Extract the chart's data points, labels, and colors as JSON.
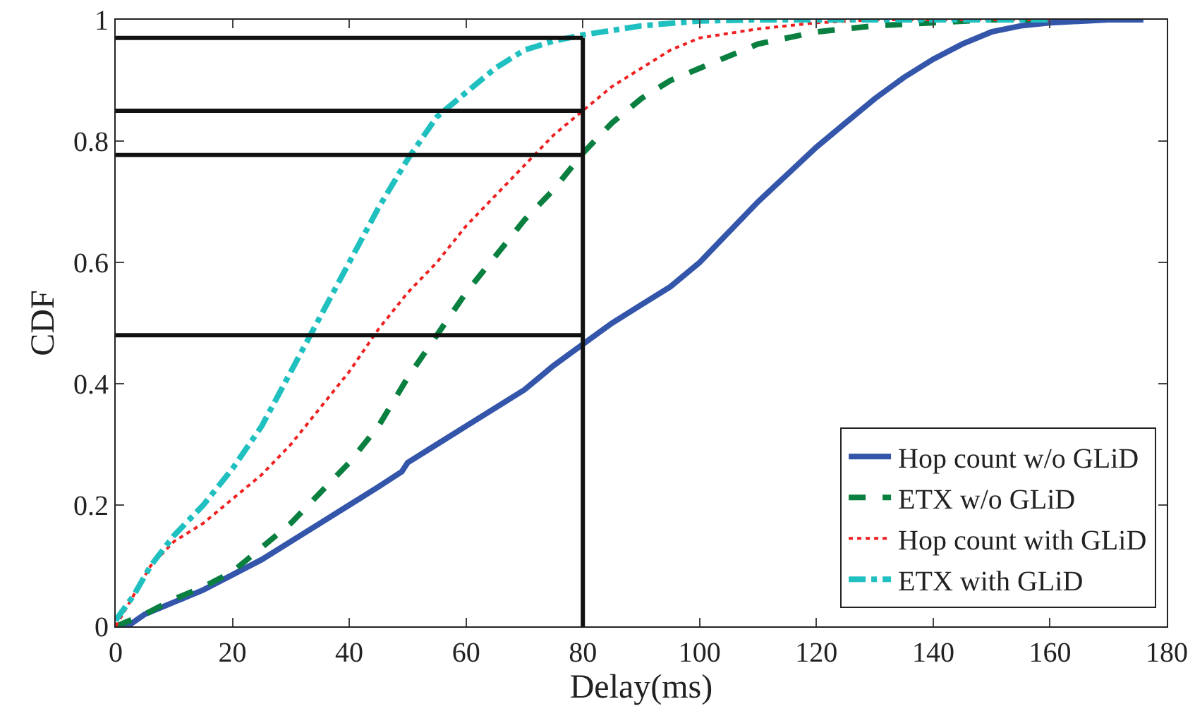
{
  "chart_data": {
    "type": "line",
    "xlabel": "Delay(ms)",
    "ylabel": "CDF",
    "xlim": [
      0,
      180
    ],
    "xticks": [
      0,
      20,
      40,
      60,
      80,
      100,
      120,
      140,
      160,
      180
    ],
    "ylim": [
      0,
      1
    ],
    "yticks": [
      0,
      0.2,
      0.4,
      0.6,
      0.8,
      1
    ],
    "grid": false,
    "legend": "bottom right",
    "marker": "none",
    "series": [
      {
        "name": "Hop count w/o GLiD",
        "color": "#3355aa",
        "line_style": "solid",
        "x": [
          0,
          2,
          5,
          10,
          15,
          20,
          25,
          30,
          35,
          40,
          45,
          49,
          50,
          55,
          60,
          65,
          70,
          75,
          80,
          85,
          90,
          95,
          100,
          105,
          110,
          115,
          120,
          125,
          130,
          135,
          140,
          145,
          150,
          155,
          160,
          170,
          176
        ],
        "values": [
          0,
          0,
          0.02,
          0.04,
          0.06,
          0.085,
          0.11,
          0.14,
          0.17,
          0.2,
          0.23,
          0.255,
          0.27,
          0.3,
          0.33,
          0.36,
          0.39,
          0.43,
          0.465,
          0.5,
          0.53,
          0.56,
          0.6,
          0.65,
          0.7,
          0.745,
          0.79,
          0.83,
          0.87,
          0.905,
          0.935,
          0.96,
          0.98,
          0.99,
          0.995,
          1,
          1
        ]
      },
      {
        "name": "ETX w/o GLiD",
        "color": "#0a8040",
        "line_style": "dashed",
        "x": [
          0,
          5,
          10,
          15,
          20,
          25,
          30,
          35,
          40,
          45,
          50,
          55,
          60,
          65,
          70,
          75,
          80,
          85,
          90,
          95,
          100,
          105,
          110,
          120,
          130,
          140,
          150,
          160
        ],
        "values": [
          0,
          0.02,
          0.045,
          0.065,
          0.09,
          0.13,
          0.17,
          0.22,
          0.27,
          0.33,
          0.41,
          0.48,
          0.55,
          0.61,
          0.67,
          0.72,
          0.78,
          0.83,
          0.87,
          0.9,
          0.92,
          0.94,
          0.96,
          0.98,
          0.99,
          0.995,
          1,
          1
        ]
      },
      {
        "name": "Hop count with GLiD",
        "color": "#ee2020",
        "line_style": "dotted",
        "x": [
          0,
          3,
          6,
          10,
          15,
          20,
          25,
          30,
          35,
          40,
          45,
          50,
          55,
          60,
          65,
          70,
          75,
          80,
          85,
          90,
          95,
          100,
          110,
          120,
          130,
          160
        ],
        "values": [
          0,
          0.05,
          0.1,
          0.14,
          0.17,
          0.21,
          0.25,
          0.3,
          0.36,
          0.42,
          0.49,
          0.55,
          0.6,
          0.66,
          0.71,
          0.76,
          0.81,
          0.85,
          0.89,
          0.92,
          0.95,
          0.97,
          0.985,
          0.995,
          1,
          1
        ]
      },
      {
        "name": "ETX with GLiD",
        "color": "#20c0c0",
        "line_style": "dashdot",
        "x": [
          0,
          3,
          6,
          10,
          15,
          20,
          25,
          30,
          35,
          40,
          45,
          50,
          55,
          60,
          65,
          70,
          75,
          80,
          90,
          100,
          110,
          160
        ],
        "values": [
          0.01,
          0.05,
          0.1,
          0.15,
          0.2,
          0.26,
          0.33,
          0.42,
          0.51,
          0.6,
          0.69,
          0.77,
          0.84,
          0.88,
          0.92,
          0.95,
          0.965,
          0.975,
          0.99,
          0.998,
          1,
          1
        ]
      }
    ],
    "ref_lines": [
      {
        "axis": "x",
        "value": 80,
        "color": "#111111"
      },
      {
        "axis": "y",
        "value": 0.97,
        "color": "#111111"
      },
      {
        "axis": "y",
        "value": 0.85,
        "color": "#111111"
      },
      {
        "axis": "y",
        "value": 0.777,
        "color": "#111111"
      },
      {
        "axis": "y",
        "value": 0.48,
        "color": "#111111"
      }
    ]
  }
}
